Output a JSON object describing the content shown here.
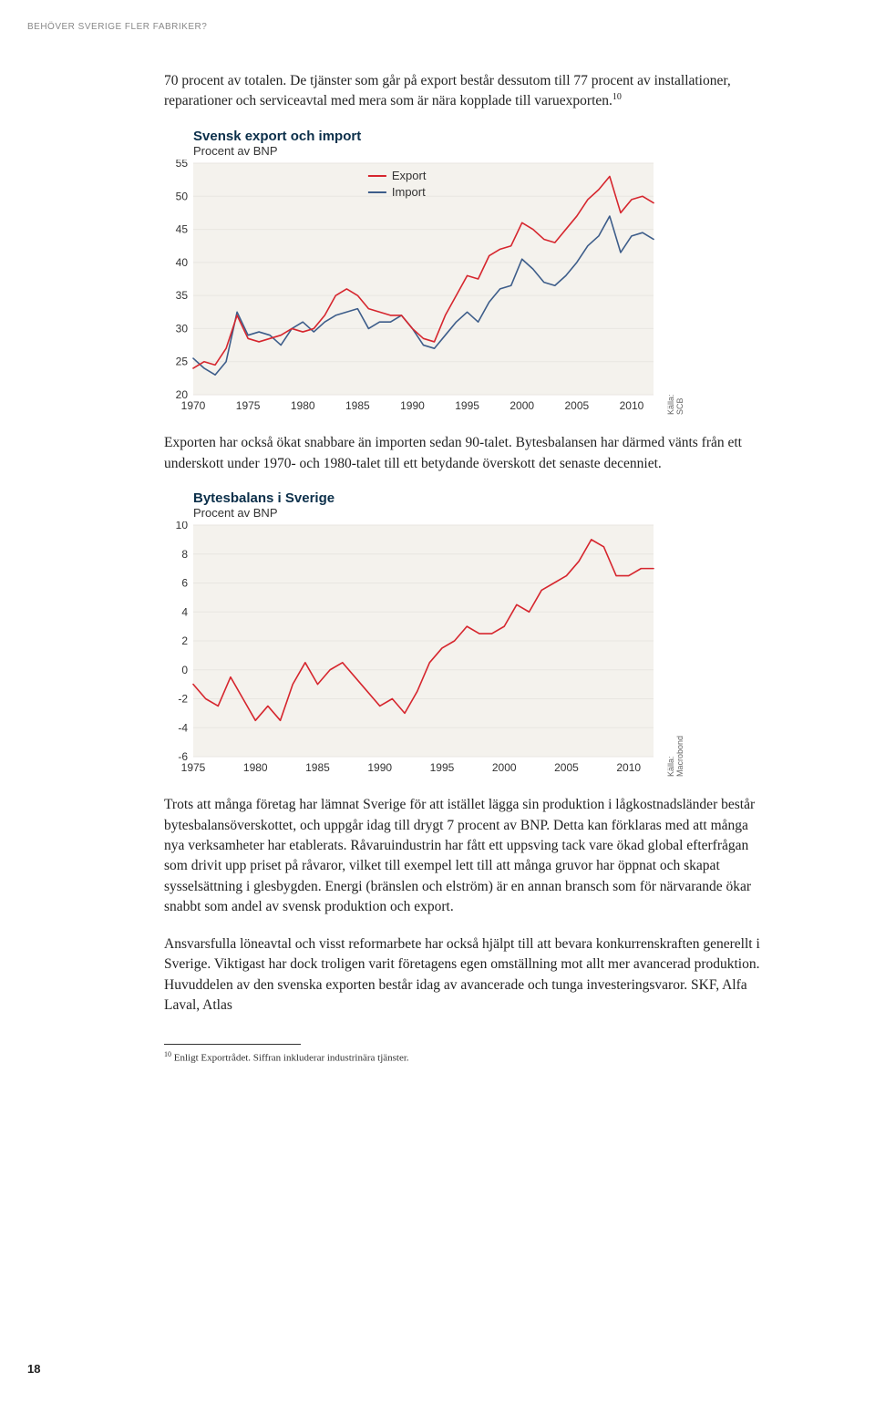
{
  "header": {
    "label": "BEHÖVER SVERIGE FLER FABRIKER?"
  },
  "para1": "70 procent av totalen. De tjänster som går på export består dessutom till 77 procent av installationer, reparationer och serviceavtal med mera som är nära kopplade till varuexporten.",
  "sup1": "10",
  "chart1": {
    "title": "Svensk export och import",
    "subtitle": "Procent av BNP",
    "legend": {
      "export": "Export",
      "import": "Import"
    },
    "source": "Källa: SCB",
    "ymin": 20,
    "ymax": 55,
    "ystep": 5,
    "xticks": [
      1970,
      1975,
      1980,
      1985,
      1990,
      1995,
      2000,
      2005,
      2010
    ],
    "xmin": 1970,
    "xmax": 2012,
    "colors": {
      "export": "#d6262e",
      "import": "#3d5d8a",
      "grid": "#e8e6e1",
      "bg": "#f4f2ed",
      "axis_text": "#333"
    },
    "line_width": 1.6,
    "fontsize_ticks": 12,
    "export_data": [
      [
        1970,
        24
      ],
      [
        1971,
        25
      ],
      [
        1972,
        24.5
      ],
      [
        1973,
        27
      ],
      [
        1974,
        32
      ],
      [
        1975,
        28.5
      ],
      [
        1976,
        28
      ],
      [
        1977,
        28.5
      ],
      [
        1978,
        29
      ],
      [
        1979,
        30
      ],
      [
        1980,
        29.5
      ],
      [
        1981,
        30
      ],
      [
        1982,
        32
      ],
      [
        1983,
        35
      ],
      [
        1984,
        36
      ],
      [
        1985,
        35
      ],
      [
        1986,
        33
      ],
      [
        1987,
        32.5
      ],
      [
        1988,
        32
      ],
      [
        1989,
        32
      ],
      [
        1990,
        30
      ],
      [
        1991,
        28.5
      ],
      [
        1992,
        28
      ],
      [
        1993,
        32
      ],
      [
        1994,
        35
      ],
      [
        1995,
        38
      ],
      [
        1996,
        37.5
      ],
      [
        1997,
        41
      ],
      [
        1998,
        42
      ],
      [
        1999,
        42.5
      ],
      [
        2000,
        46
      ],
      [
        2001,
        45
      ],
      [
        2002,
        43.5
      ],
      [
        2003,
        43
      ],
      [
        2004,
        45
      ],
      [
        2005,
        47
      ],
      [
        2006,
        49.5
      ],
      [
        2007,
        51
      ],
      [
        2008,
        53
      ],
      [
        2009,
        47.5
      ],
      [
        2010,
        49.5
      ],
      [
        2011,
        50
      ],
      [
        2012,
        49
      ]
    ],
    "import_data": [
      [
        1970,
        25.5
      ],
      [
        1971,
        24
      ],
      [
        1972,
        23
      ],
      [
        1973,
        25
      ],
      [
        1974,
        32.5
      ],
      [
        1975,
        29
      ],
      [
        1976,
        29.5
      ],
      [
        1977,
        29
      ],
      [
        1978,
        27.5
      ],
      [
        1979,
        30
      ],
      [
        1980,
        31
      ],
      [
        1981,
        29.5
      ],
      [
        1982,
        31
      ],
      [
        1983,
        32
      ],
      [
        1984,
        32.5
      ],
      [
        1985,
        33
      ],
      [
        1986,
        30
      ],
      [
        1987,
        31
      ],
      [
        1988,
        31
      ],
      [
        1989,
        32
      ],
      [
        1990,
        30
      ],
      [
        1991,
        27.5
      ],
      [
        1992,
        27
      ],
      [
        1993,
        29
      ],
      [
        1994,
        31
      ],
      [
        1995,
        32.5
      ],
      [
        1996,
        31
      ],
      [
        1997,
        34
      ],
      [
        1998,
        36
      ],
      [
        1999,
        36.5
      ],
      [
        2000,
        40.5
      ],
      [
        2001,
        39
      ],
      [
        2002,
        37
      ],
      [
        2003,
        36.5
      ],
      [
        2004,
        38
      ],
      [
        2005,
        40
      ],
      [
        2006,
        42.5
      ],
      [
        2007,
        44
      ],
      [
        2008,
        47
      ],
      [
        2009,
        41.5
      ],
      [
        2010,
        44
      ],
      [
        2011,
        44.5
      ],
      [
        2012,
        43.5
      ]
    ]
  },
  "para2": "Exporten har också ökat snabbare än importen sedan 90-talet. Bytesbalansen har därmed vänts från ett underskott under 1970- och 1980-talet till ett betydande överskott det senaste decenniet.",
  "chart2": {
    "title": "Bytesbalans i Sverige",
    "subtitle": "Procent av BNP",
    "source": "Källa: Macrobond",
    "ymin": -6,
    "ymax": 10,
    "ystep": 2,
    "xticks": [
      1975,
      1980,
      1985,
      1990,
      1995,
      2000,
      2005,
      2010
    ],
    "xmin": 1975,
    "xmax": 2012,
    "colors": {
      "line": "#d6262e",
      "grid": "#e8e6e1",
      "bg": "#f4f2ed",
      "axis_text": "#333"
    },
    "line_width": 1.6,
    "fontsize_ticks": 12,
    "data": [
      [
        1975,
        -1
      ],
      [
        1976,
        -2
      ],
      [
        1977,
        -2.5
      ],
      [
        1978,
        -0.5
      ],
      [
        1979,
        -2
      ],
      [
        1980,
        -3.5
      ],
      [
        1981,
        -2.5
      ],
      [
        1982,
        -3.5
      ],
      [
        1983,
        -1
      ],
      [
        1984,
        0.5
      ],
      [
        1985,
        -1
      ],
      [
        1986,
        0
      ],
      [
        1987,
        0.5
      ],
      [
        1988,
        -0.5
      ],
      [
        1989,
        -1.5
      ],
      [
        1990,
        -2.5
      ],
      [
        1991,
        -2
      ],
      [
        1992,
        -3
      ],
      [
        1993,
        -1.5
      ],
      [
        1994,
        0.5
      ],
      [
        1995,
        1.5
      ],
      [
        1996,
        2
      ],
      [
        1997,
        3
      ],
      [
        1998,
        2.5
      ],
      [
        1999,
        2.5
      ],
      [
        2000,
        3
      ],
      [
        2001,
        4.5
      ],
      [
        2002,
        4
      ],
      [
        2003,
        5.5
      ],
      [
        2004,
        6
      ],
      [
        2005,
        6.5
      ],
      [
        2006,
        7.5
      ],
      [
        2007,
        9
      ],
      [
        2008,
        8.5
      ],
      [
        2009,
        6.5
      ],
      [
        2010,
        6.5
      ],
      [
        2011,
        7
      ],
      [
        2012,
        7
      ]
    ]
  },
  "para3": "Trots att många företag har lämnat Sverige för att istället lägga sin produktion i lågkostnadsländer består bytesbalansöverskottet, och uppgår idag till drygt 7 procent av BNP. Detta kan förklaras med att många nya verksamheter har etablerats. Råvaruindustrin har fått ett uppsving tack vare ökad global efterfrågan som drivit upp priset på råvaror, vilket till exempel lett till att många gruvor har öppnat och skapat sysselsättning i glesbygden. Energi (bränslen och elström) är en annan bransch som för närvarande ökar snabbt som andel av svensk produktion och export.",
  "para4": "Ansvarsfulla löneavtal och visst reformarbete har också hjälpt till att bevara konkurrenskraften generellt i Sverige. Viktigast har dock troligen varit företagens egen omställning mot allt mer avancerad produktion. Huvuddelen av den svenska exporten består idag av avancerade och tunga investeringsvaror. SKF, Alfa Laval, Atlas",
  "footnote": {
    "num": "10",
    "text": "Enligt Exportrådet. Siffran inkluderar industrinära tjänster."
  },
  "page_number": "18"
}
